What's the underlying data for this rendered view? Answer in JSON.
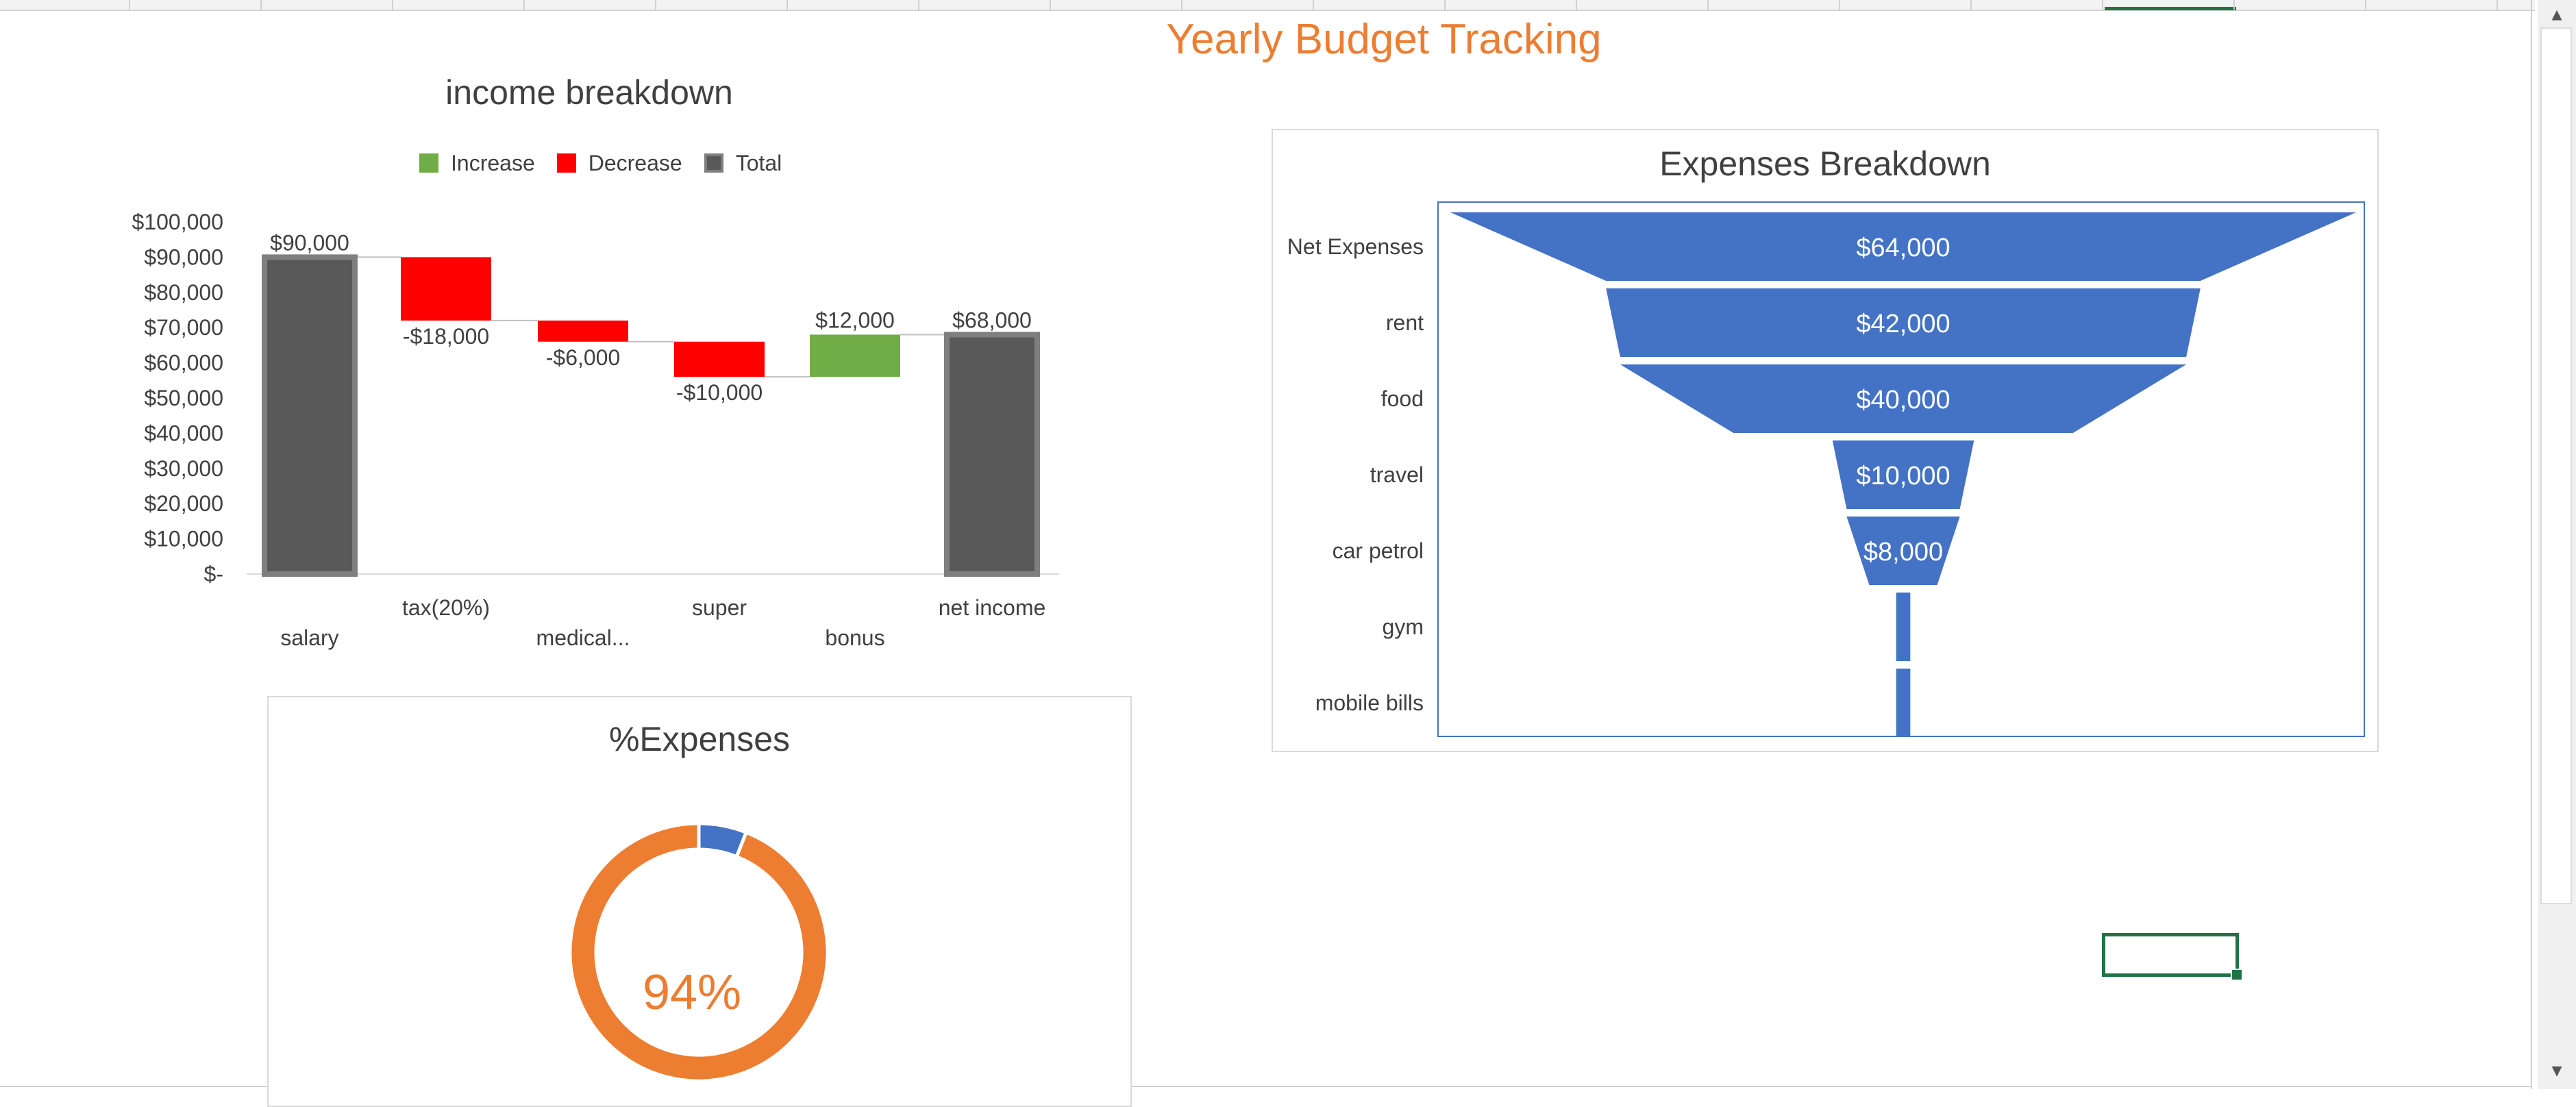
{
  "sheet": {
    "title": "Yearly Budget Tracking"
  },
  "colors": {
    "increase": "#70ad47",
    "decrease": "#ff0000",
    "total": "#595959",
    "funnel": "#4472c4",
    "accent": "#ed7d31",
    "donut_blue": "#4472c4"
  },
  "income_chart": {
    "title": "income breakdown",
    "legend": {
      "increase": "Increase",
      "decrease": "Decrease",
      "total": "Total"
    }
  },
  "expenses_chart": {
    "title": "Expenses Breakdown"
  },
  "pct_chart": {
    "title": "%Expenses",
    "value_label": "94%"
  },
  "chart_data": [
    {
      "type": "waterfall",
      "title": "income breakdown",
      "categories": [
        "salary",
        "tax(20%)",
        "medical...",
        "super",
        "bonus",
        "net income"
      ],
      "values": [
        90000,
        -18000,
        -6000,
        -10000,
        12000,
        68000
      ],
      "kinds": [
        "total",
        "decrease",
        "decrease",
        "decrease",
        "increase",
        "total"
      ],
      "data_labels": [
        "$90,000",
        "-$18,000",
        "-$6,000",
        "-$10,000",
        "$12,000",
        "$68,000"
      ],
      "y_ticks": [
        "$-",
        "$10,000",
        "$20,000",
        "$30,000",
        "$40,000",
        "$50,000",
        "$60,000",
        "$70,000",
        "$80,000",
        "$90,000",
        "$100,000"
      ],
      "ylim": [
        0,
        100000
      ],
      "legend": [
        "Increase",
        "Decrease",
        "Total"
      ],
      "legend_position": "top"
    },
    {
      "type": "funnel",
      "title": "Expenses Breakdown",
      "categories": [
        "Net Expenses",
        "rent",
        "food",
        "travel",
        "car petrol",
        "gym",
        "mobile bills"
      ],
      "values": [
        64000,
        42000,
        40000,
        10000,
        8000,
        1000,
        1000
      ],
      "data_labels": [
        "$64,000",
        "$42,000",
        "$40,000",
        "$10,000",
        "$8,000",
        "",
        ""
      ]
    },
    {
      "type": "pie",
      "subtype": "doughnut",
      "title": "%Expenses",
      "values": [
        6,
        94
      ],
      "center_label": "94%"
    }
  ]
}
